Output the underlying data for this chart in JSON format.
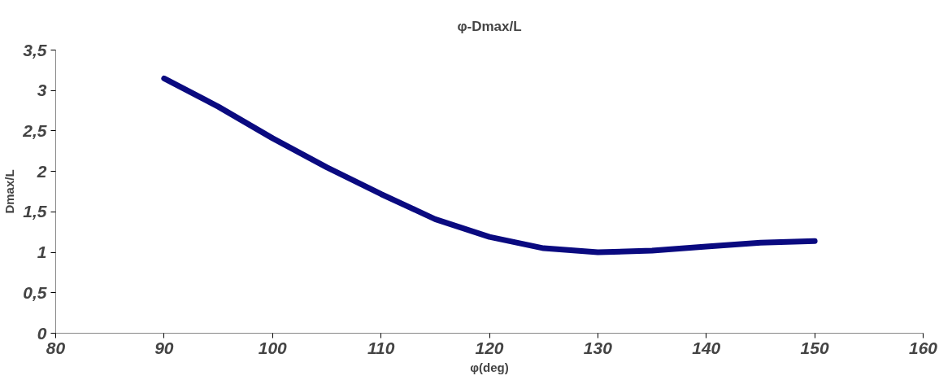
{
  "chart_data": {
    "type": "line",
    "title": "φ-Dmax/L",
    "xlabel": "φ(deg)",
    "ylabel": "Dmax/L",
    "x": [
      90,
      95,
      100,
      105,
      110,
      115,
      120,
      125,
      130,
      135,
      140,
      145,
      150
    ],
    "series": [
      {
        "color": "#0a0a80",
        "values": [
          3.15,
          2.8,
          2.41,
          2.05,
          1.72,
          1.41,
          1.19,
          1.05,
          1.0,
          1.02,
          1.07,
          1.12,
          1.14
        ]
      }
    ],
    "xlim": [
      80,
      160
    ],
    "xticks": [
      80,
      90,
      100,
      110,
      120,
      130,
      140,
      150,
      160
    ],
    "ylim": [
      0,
      3.5
    ],
    "yticks": [
      0,
      {
        "value": 0.5,
        "label": "0,5"
      },
      1,
      {
        "value": 1.5,
        "label": "1,5"
      },
      2,
      {
        "value": 2.5,
        "label": "2,5"
      },
      3,
      {
        "value": 3.5,
        "label": "3,5"
      }
    ],
    "line_style": "solid"
  }
}
